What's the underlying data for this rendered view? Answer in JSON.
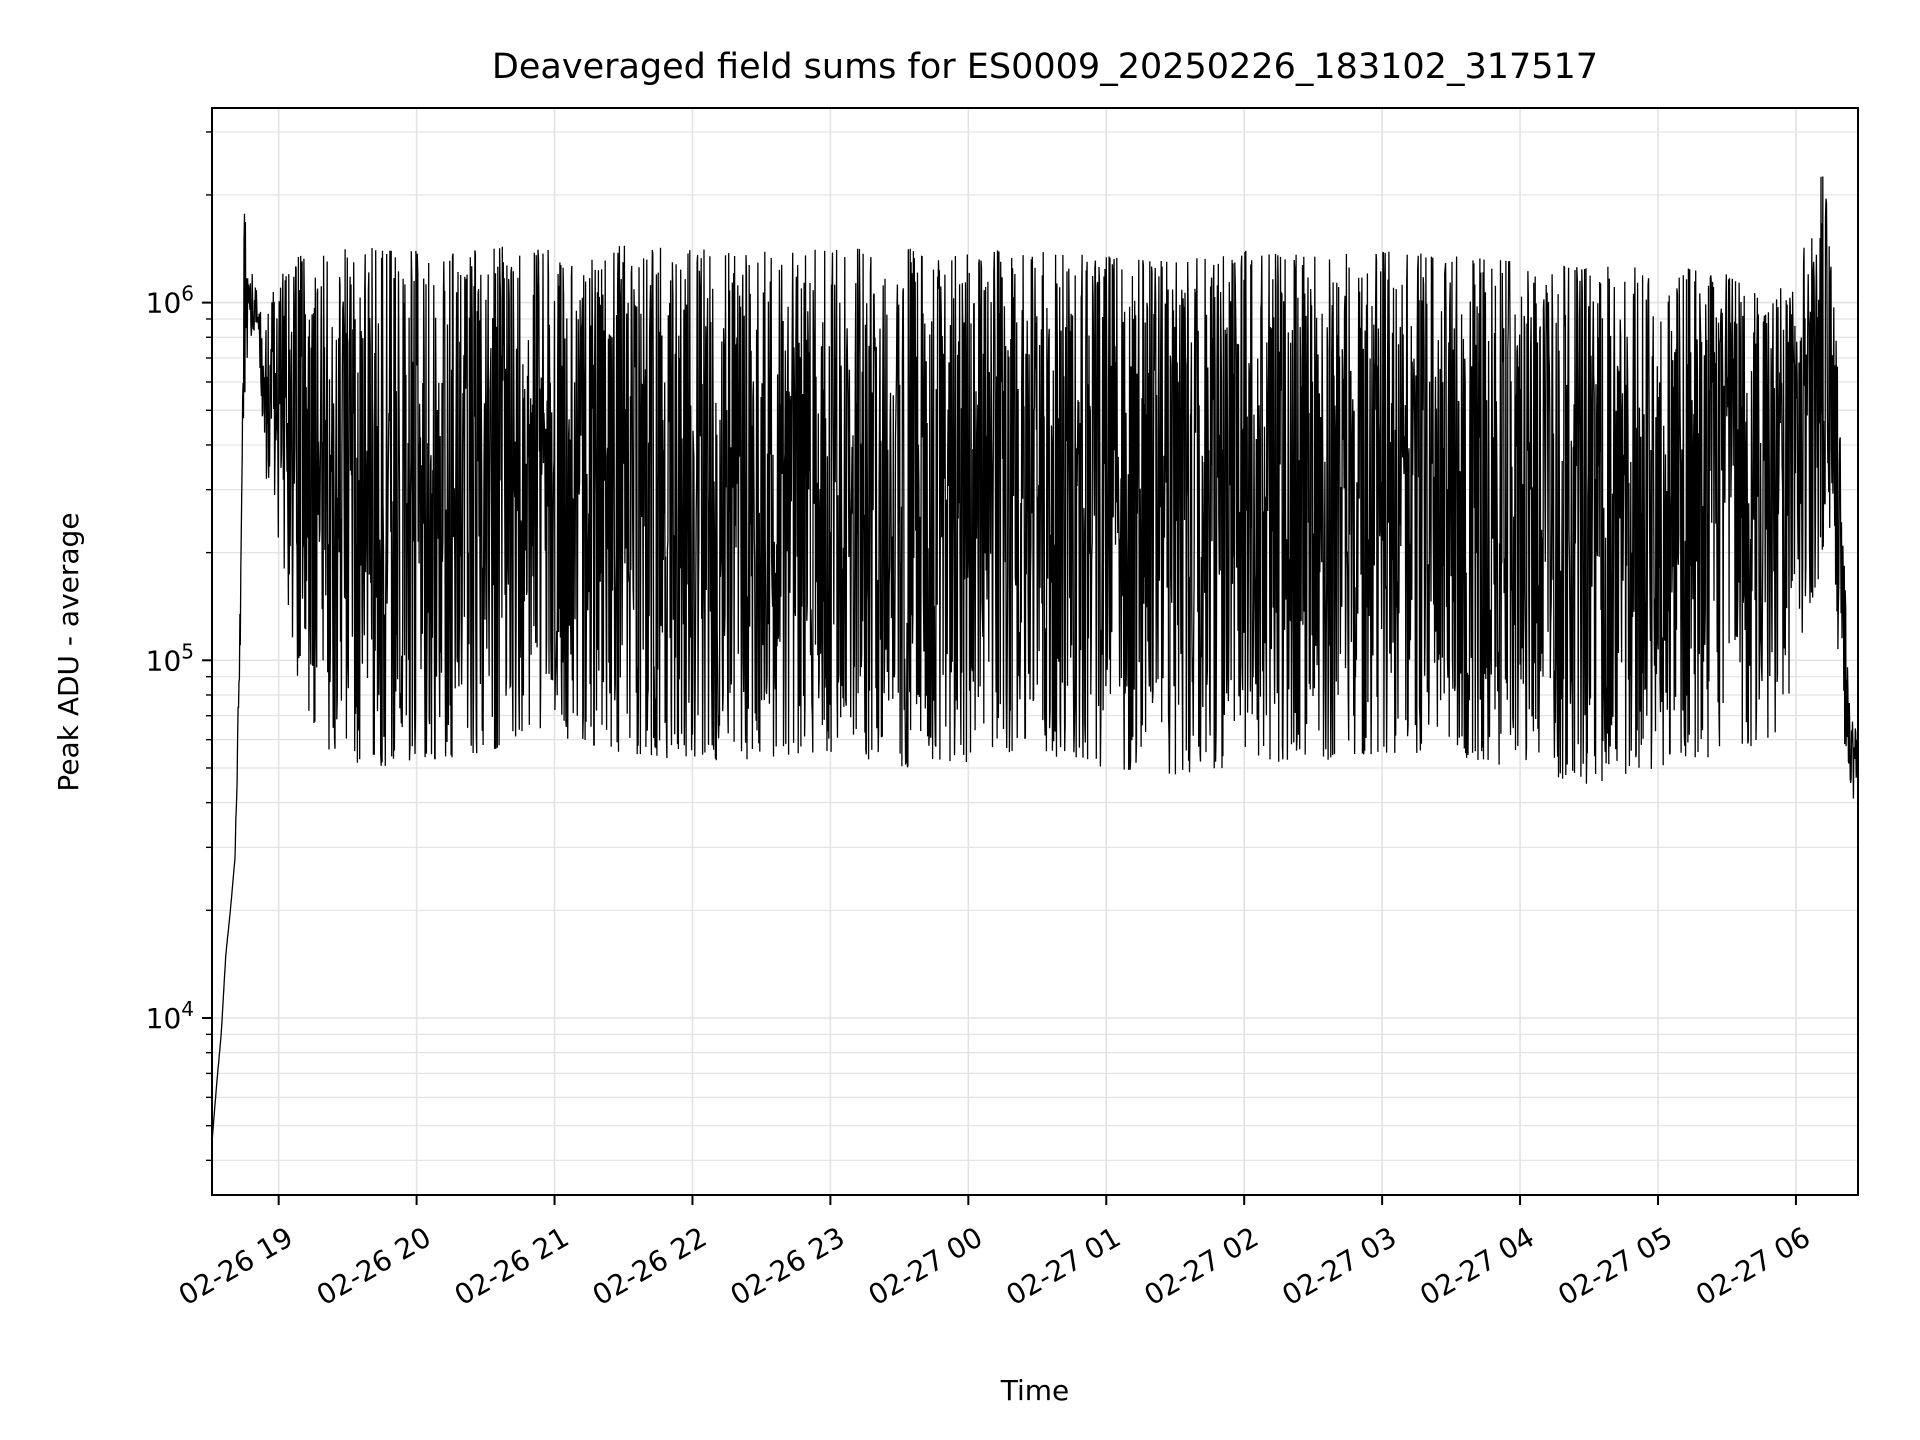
{
  "chart_data": {
    "type": "line",
    "title": "Deaveraged field sums for ES0009_20250226_183102_317517",
    "xlabel": "Time",
    "ylabel": "Peak ADU - average",
    "x_scale": "time",
    "y_scale": "log",
    "xlim": [
      "2025-02-26 18:31",
      "2025-02-27 06:27"
    ],
    "ylim": [
      3200,
      3500000
    ],
    "grid": true,
    "line_color": "#000000",
    "x_ticks": [
      {
        "label": "02-26 19",
        "time": "2025-02-26 19:00"
      },
      {
        "label": "02-26 20",
        "time": "2025-02-26 20:00"
      },
      {
        "label": "02-26 21",
        "time": "2025-02-26 21:00"
      },
      {
        "label": "02-26 22",
        "time": "2025-02-26 22:00"
      },
      {
        "label": "02-26 23",
        "time": "2025-02-26 23:00"
      },
      {
        "label": "02-27 00",
        "time": "2025-02-27 00:00"
      },
      {
        "label": "02-27 01",
        "time": "2025-02-27 01:00"
      },
      {
        "label": "02-27 02",
        "time": "2025-02-27 02:00"
      },
      {
        "label": "02-27 03",
        "time": "2025-02-27 03:00"
      },
      {
        "label": "02-27 04",
        "time": "2025-02-27 04:00"
      },
      {
        "label": "02-27 05",
        "time": "2025-02-27 05:00"
      },
      {
        "label": "02-27 06",
        "time": "2025-02-27 06:00"
      }
    ],
    "y_ticks": [
      {
        "value": 10000,
        "base": "10",
        "exp": "4"
      },
      {
        "value": 100000,
        "base": "10",
        "exp": "5"
      },
      {
        "value": 1000000,
        "base": "10",
        "exp": "6"
      }
    ],
    "series": [
      {
        "x": [
          "2025-02-26 18:31",
          "2025-02-26 18:33",
          "2025-02-26 18:35",
          "2025-02-26 18:37",
          "2025-02-26 18:39",
          "2025-02-26 18:41",
          "2025-02-26 18:43",
          "2025-02-26 18:45",
          "2025-02-26 18:47",
          "2025-02-26 18:49",
          "2025-02-26 18:51",
          "2025-02-26 18:53",
          "2025-02-26 18:55",
          "2025-02-26 18:58",
          "2025-02-26 19:01",
          "2025-02-26 19:05",
          "2025-02-26 19:09",
          "2025-02-26 19:14",
          "2025-02-26 19:20",
          "2025-02-26 19:27",
          "2025-02-26 19:35",
          "2025-02-26 19:45",
          "2025-02-26 20:00",
          "2025-02-26 20:30",
          "2025-02-26 21:00",
          "2025-02-26 21:30",
          "2025-02-26 22:00",
          "2025-02-26 22:30",
          "2025-02-26 23:00",
          "2025-02-26 23:30",
          "2025-02-27 00:00",
          "2025-02-27 00:30",
          "2025-02-27 01:00",
          "2025-02-27 01:30",
          "2025-02-27 02:00",
          "2025-02-27 02:30",
          "2025-02-27 03:00",
          "2025-02-27 03:30",
          "2025-02-27 04:00",
          "2025-02-27 04:30",
          "2025-02-27 05:00",
          "2025-02-27 05:30",
          "2025-02-27 05:50",
          "2025-02-27 06:00",
          "2025-02-27 06:06",
          "2025-02-27 06:10",
          "2025-02-27 06:13",
          "2025-02-27 06:16",
          "2025-02-27 06:19",
          "2025-02-27 06:22",
          "2025-02-27 06:25",
          "2025-02-27 06:27"
        ],
        "envelope_low": [
          4500,
          6500,
          9000,
          15000,
          20000,
          28000,
          75000,
          500000,
          800000,
          800000,
          700000,
          450000,
          300000,
          250000,
          200000,
          130000,
          80000,
          60000,
          55000,
          50000,
          48000,
          50000,
          52000,
          55000,
          60000,
          55000,
          52000,
          53000,
          55000,
          50000,
          52000,
          55000,
          50000,
          48000,
          50000,
          52000,
          55000,
          55000,
          48000,
          45000,
          50000,
          55000,
          60000,
          90000,
          140000,
          170000,
          190000,
          160000,
          90000,
          50000,
          40000,
          45000
        ],
        "envelope_high": [
          4500,
          6500,
          9000,
          15000,
          20000,
          28000,
          120000,
          2100000,
          1100000,
          1300000,
          1000000,
          900000,
          1000000,
          1100000,
          1200000,
          1300000,
          1350000,
          1400000,
          1350000,
          1400000,
          1450000,
          1400000,
          1400000,
          1450000,
          1400000,
          1450000,
          1400000,
          1450000,
          1400000,
          1450000,
          1400000,
          1400000,
          1350000,
          1300000,
          1400000,
          1350000,
          1400000,
          1350000,
          1300000,
          1250000,
          1300000,
          1200000,
          1000000,
          1450000,
          1600000,
          2200000,
          2700000,
          1300000,
          500000,
          120000,
          70000,
          60000
        ]
      }
    ]
  }
}
